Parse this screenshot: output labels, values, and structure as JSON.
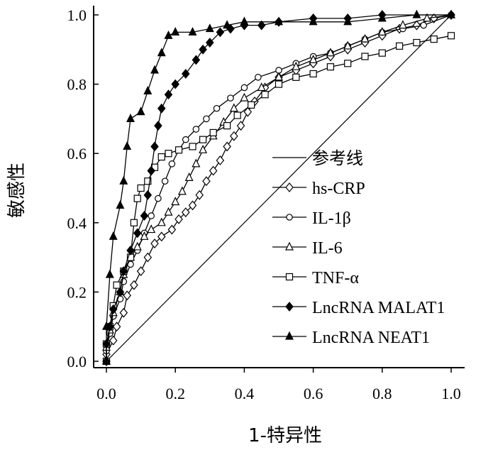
{
  "chart_data": {
    "type": "line",
    "xlabel": "1-特异性",
    "ylabel": "敏感性",
    "xlim": [
      0,
      1
    ],
    "ylim": [
      0,
      1
    ],
    "x_ticks": [
      "0.0",
      "0.2",
      "0.4",
      "0.6",
      "0.8",
      "1.0"
    ],
    "y_ticks": [
      "0.0",
      "0.2",
      "0.4",
      "0.6",
      "0.8",
      "1.0"
    ],
    "legend_position": "center-right",
    "reference_line": {
      "name": "参考线",
      "points": [
        [
          0,
          0
        ],
        [
          1,
          1
        ]
      ]
    },
    "series": [
      {
        "name": "hs-CRP",
        "marker": "diamond-open",
        "points": [
          [
            0,
            0
          ],
          [
            0,
            0.02
          ],
          [
            0.02,
            0.06
          ],
          [
            0.03,
            0.1
          ],
          [
            0.05,
            0.14
          ],
          [
            0.06,
            0.19
          ],
          [
            0.08,
            0.22
          ],
          [
            0.1,
            0.26
          ],
          [
            0.12,
            0.3
          ],
          [
            0.14,
            0.34
          ],
          [
            0.16,
            0.36
          ],
          [
            0.19,
            0.38
          ],
          [
            0.21,
            0.41
          ],
          [
            0.23,
            0.43
          ],
          [
            0.25,
            0.45
          ],
          [
            0.27,
            0.48
          ],
          [
            0.29,
            0.52
          ],
          [
            0.31,
            0.55
          ],
          [
            0.33,
            0.58
          ],
          [
            0.35,
            0.62
          ],
          [
            0.37,
            0.65
          ],
          [
            0.39,
            0.68
          ],
          [
            0.41,
            0.72
          ],
          [
            0.43,
            0.75
          ],
          [
            0.46,
            0.79
          ],
          [
            0.5,
            0.82
          ],
          [
            0.55,
            0.84
          ],
          [
            0.6,
            0.86
          ],
          [
            0.65,
            0.88
          ],
          [
            0.7,
            0.9
          ],
          [
            0.75,
            0.92
          ],
          [
            0.8,
            0.94
          ],
          [
            0.85,
            0.96
          ],
          [
            0.9,
            0.97
          ],
          [
            0.95,
            0.99
          ],
          [
            1,
            1
          ]
        ]
      },
      {
        "name": "IL-1β",
        "marker": "circle-open",
        "points": [
          [
            0,
            0
          ],
          [
            0,
            0.03
          ],
          [
            0.01,
            0.08
          ],
          [
            0.02,
            0.13
          ],
          [
            0.04,
            0.18
          ],
          [
            0.05,
            0.23
          ],
          [
            0.07,
            0.28
          ],
          [
            0.09,
            0.32
          ],
          [
            0.11,
            0.37
          ],
          [
            0.13,
            0.42
          ],
          [
            0.15,
            0.47
          ],
          [
            0.17,
            0.52
          ],
          [
            0.19,
            0.57
          ],
          [
            0.21,
            0.61
          ],
          [
            0.23,
            0.64
          ],
          [
            0.26,
            0.67
          ],
          [
            0.29,
            0.7
          ],
          [
            0.32,
            0.73
          ],
          [
            0.36,
            0.76
          ],
          [
            0.4,
            0.79
          ],
          [
            0.44,
            0.82
          ],
          [
            0.5,
            0.84
          ],
          [
            0.55,
            0.86
          ],
          [
            0.6,
            0.88
          ],
          [
            0.65,
            0.89
          ],
          [
            0.7,
            0.91
          ],
          [
            0.75,
            0.93
          ],
          [
            0.8,
            0.95
          ],
          [
            0.86,
            0.96
          ],
          [
            0.92,
            0.97
          ],
          [
            1,
            1
          ]
        ]
      },
      {
        "name": "IL-6",
        "marker": "triangle-open",
        "points": [
          [
            0,
            0
          ],
          [
            0,
            0.04
          ],
          [
            0.01,
            0.09
          ],
          [
            0.02,
            0.14
          ],
          [
            0.04,
            0.2
          ],
          [
            0.05,
            0.25
          ],
          [
            0.07,
            0.3
          ],
          [
            0.09,
            0.33
          ],
          [
            0.11,
            0.36
          ],
          [
            0.13,
            0.38
          ],
          [
            0.16,
            0.4
          ],
          [
            0.18,
            0.43
          ],
          [
            0.2,
            0.46
          ],
          [
            0.22,
            0.49
          ],
          [
            0.24,
            0.53
          ],
          [
            0.26,
            0.57
          ],
          [
            0.28,
            0.61
          ],
          [
            0.31,
            0.65
          ],
          [
            0.34,
            0.69
          ],
          [
            0.37,
            0.73
          ],
          [
            0.4,
            0.76
          ],
          [
            0.45,
            0.79
          ],
          [
            0.5,
            0.82
          ],
          [
            0.55,
            0.85
          ],
          [
            0.6,
            0.87
          ],
          [
            0.65,
            0.89
          ],
          [
            0.7,
            0.91
          ],
          [
            0.75,
            0.93
          ],
          [
            0.8,
            0.95
          ],
          [
            0.86,
            0.97
          ],
          [
            0.93,
            0.99
          ],
          [
            1,
            1
          ]
        ]
      },
      {
        "name": "TNF-α",
        "marker": "square-open",
        "points": [
          [
            0,
            0
          ],
          [
            0,
            0.05
          ],
          [
            0.01,
            0.1
          ],
          [
            0.02,
            0.16
          ],
          [
            0.03,
            0.22
          ],
          [
            0.05,
            0.26
          ],
          [
            0.07,
            0.3
          ],
          [
            0.08,
            0.4
          ],
          [
            0.09,
            0.47
          ],
          [
            0.1,
            0.5
          ],
          [
            0.12,
            0.52
          ],
          [
            0.14,
            0.56
          ],
          [
            0.16,
            0.59
          ],
          [
            0.18,
            0.6
          ],
          [
            0.21,
            0.61
          ],
          [
            0.25,
            0.62
          ],
          [
            0.28,
            0.64
          ],
          [
            0.31,
            0.66
          ],
          [
            0.35,
            0.68
          ],
          [
            0.38,
            0.71
          ],
          [
            0.42,
            0.74
          ],
          [
            0.46,
            0.77
          ],
          [
            0.5,
            0.8
          ],
          [
            0.55,
            0.82
          ],
          [
            0.6,
            0.83
          ],
          [
            0.65,
            0.85
          ],
          [
            0.7,
            0.86
          ],
          [
            0.75,
            0.88
          ],
          [
            0.8,
            0.89
          ],
          [
            0.85,
            0.91
          ],
          [
            0.9,
            0.92
          ],
          [
            0.95,
            0.93
          ],
          [
            1,
            0.94
          ]
        ]
      },
      {
        "name": "LncRNA MALAT1",
        "marker": "diamond-filled",
        "points": [
          [
            0,
            0
          ],
          [
            0,
            0.05
          ],
          [
            0.01,
            0.1
          ],
          [
            0.02,
            0.15
          ],
          [
            0.04,
            0.2
          ],
          [
            0.05,
            0.26
          ],
          [
            0.07,
            0.32
          ],
          [
            0.09,
            0.37
          ],
          [
            0.11,
            0.42
          ],
          [
            0.12,
            0.48
          ],
          [
            0.13,
            0.55
          ],
          [
            0.14,
            0.62
          ],
          [
            0.15,
            0.68
          ],
          [
            0.16,
            0.73
          ],
          [
            0.18,
            0.77
          ],
          [
            0.2,
            0.8
          ],
          [
            0.23,
            0.83
          ],
          [
            0.26,
            0.87
          ],
          [
            0.28,
            0.9
          ],
          [
            0.3,
            0.92
          ],
          [
            0.33,
            0.95
          ],
          [
            0.36,
            0.96
          ],
          [
            0.4,
            0.97
          ],
          [
            0.45,
            0.97
          ],
          [
            0.5,
            0.98
          ],
          [
            0.6,
            0.99
          ],
          [
            0.7,
            0.99
          ],
          [
            0.8,
            1
          ],
          [
            1,
            1
          ]
        ]
      },
      {
        "name": "LncRNA NEAT1",
        "marker": "triangle-filled",
        "points": [
          [
            0,
            0
          ],
          [
            0,
            0.1
          ],
          [
            0.01,
            0.25
          ],
          [
            0.02,
            0.36
          ],
          [
            0.04,
            0.45
          ],
          [
            0.05,
            0.52
          ],
          [
            0.06,
            0.62
          ],
          [
            0.07,
            0.7
          ],
          [
            0.1,
            0.72
          ],
          [
            0.12,
            0.78
          ],
          [
            0.14,
            0.84
          ],
          [
            0.16,
            0.89
          ],
          [
            0.18,
            0.94
          ],
          [
            0.2,
            0.95
          ],
          [
            0.25,
            0.95
          ],
          [
            0.3,
            0.96
          ],
          [
            0.35,
            0.97
          ],
          [
            0.4,
            0.98
          ],
          [
            0.5,
            0.98
          ],
          [
            0.6,
            0.98
          ],
          [
            0.7,
            0.98
          ],
          [
            0.8,
            0.99
          ],
          [
            0.9,
            1
          ],
          [
            1,
            1
          ]
        ]
      }
    ]
  }
}
